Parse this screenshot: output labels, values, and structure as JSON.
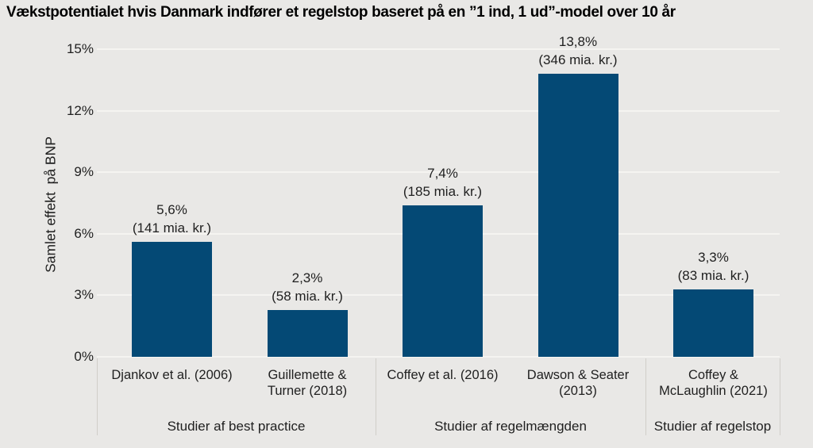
{
  "colors": {
    "background": "#e9e8e6",
    "bar": "#044975",
    "gridline": "#f5f4f1",
    "separator": "#d0cec9",
    "text": "#1f1f1f",
    "title_text": "#000000"
  },
  "chart_data": {
    "type": "bar",
    "title": "Vækstpotentialet hvis Danmark indfører et regelstop baseret på en ”1 ind, 1 ud”-model over 10 år",
    "ylabel": "Samlet effekt  på BNP",
    "xlabel": "",
    "ylim": [
      0,
      15
    ],
    "yticks": [
      "0%",
      "3%",
      "6%",
      "9%",
      "12%",
      "15%"
    ],
    "grid": "horizontal gridlines on light gray background, no legend",
    "bars": [
      {
        "study": "Djankov et al. (2006)",
        "study_lines": [
          "Djankov et al. (2006)",
          ""
        ],
        "group": "Studier af best practice",
        "value_pct": 5.6,
        "pct_label": "5,6%",
        "amount_label": "(141 mia. kr.)"
      },
      {
        "study": "Guillemette & Turner (2018)",
        "study_lines": [
          "Guillemette &",
          "Turner (2018)"
        ],
        "group": "Studier af best practice",
        "value_pct": 2.3,
        "pct_label": "2,3%",
        "amount_label": "(58 mia. kr.)"
      },
      {
        "study": "Coffey et al. (2016)",
        "study_lines": [
          "Coffey et al. (2016)",
          ""
        ],
        "group": "Studier af regelmængden",
        "value_pct": 7.4,
        "pct_label": "7,4%",
        "amount_label": "(185 mia. kr.)"
      },
      {
        "study": "Dawson & Seater (2013)",
        "study_lines": [
          "Dawson & Seater",
          "(2013)"
        ],
        "group": "Studier af regelmængden",
        "value_pct": 13.8,
        "pct_label": "13,8%",
        "amount_label": "(346 mia. kr.)"
      },
      {
        "study": "Coffey & McLaughlin (2021)",
        "study_lines": [
          "Coffey &",
          "McLaughlin (2021)"
        ],
        "group": "Studier af regelstop",
        "value_pct": 3.3,
        "pct_label": "3,3%",
        "amount_label": "(83 mia. kr.)"
      }
    ],
    "groups": [
      {
        "label": "Studier af best practice"
      },
      {
        "label": "Studier af regelmængden"
      },
      {
        "label": "Studier af regelstop"
      }
    ]
  }
}
